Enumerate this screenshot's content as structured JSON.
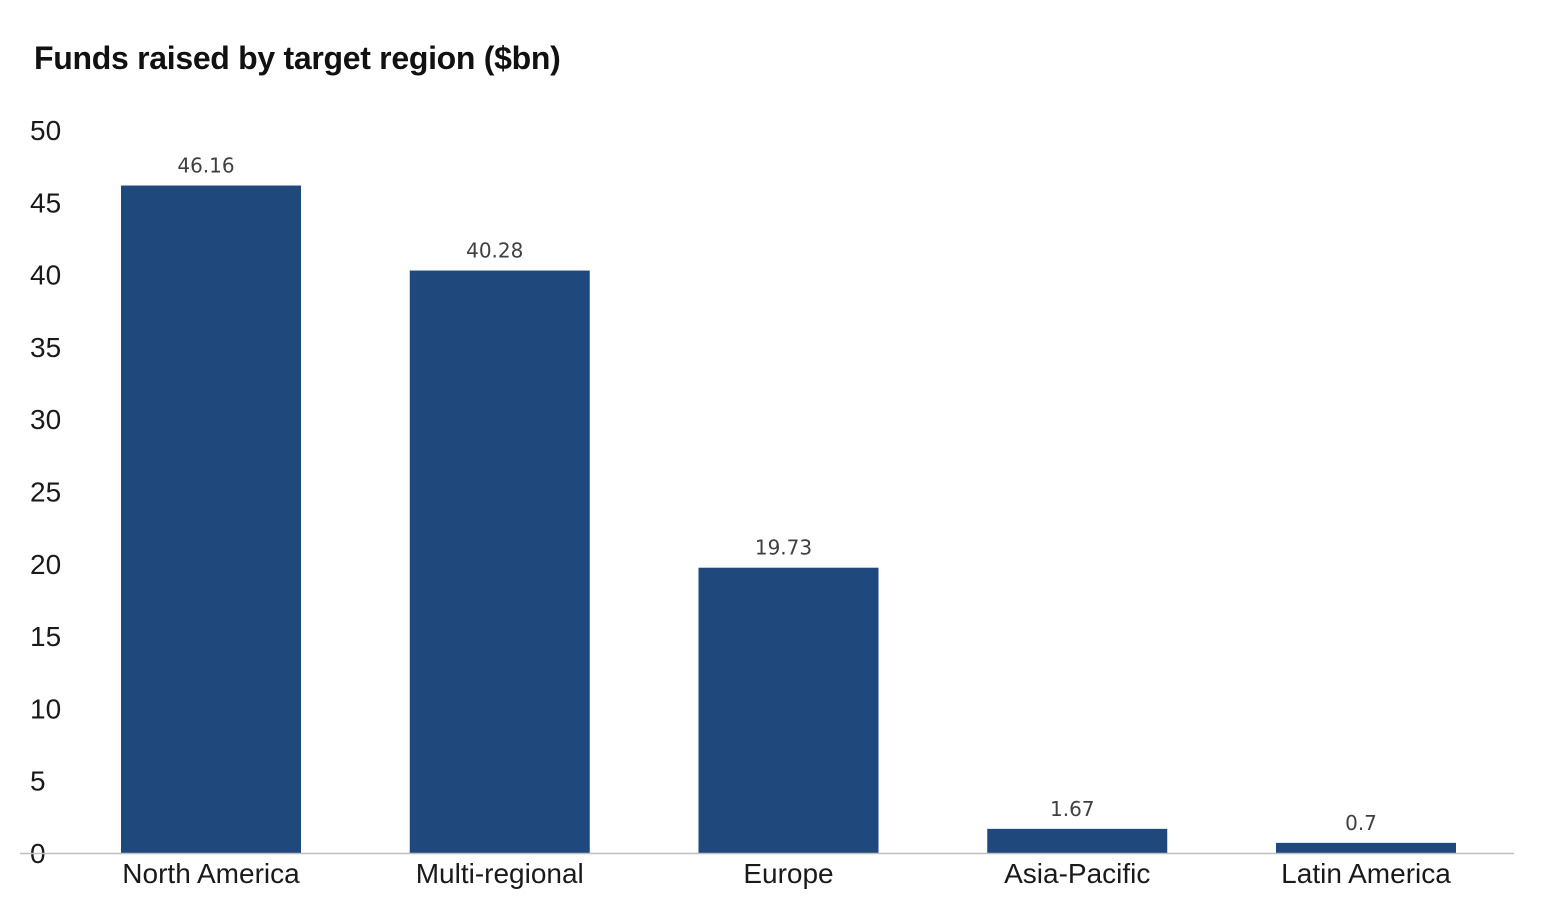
{
  "chart_data": {
    "type": "bar",
    "title": "Funds raised by target region ($bn)",
    "xlabel": "",
    "ylabel": "",
    "categories": [
      "North America",
      "Multi-regional",
      "Europe",
      "Asia-Pacific",
      "Latin America"
    ],
    "values": [
      46.16,
      40.28,
      19.73,
      1.67,
      0.7
    ],
    "data_labels": [
      "46.16",
      "40.28",
      "19.73",
      "1.67",
      "0.7"
    ],
    "ylim": [
      0,
      50
    ],
    "yticks": [
      0,
      5,
      10,
      15,
      20,
      25,
      30,
      35,
      40,
      45,
      50
    ],
    "grid": false,
    "legend": "none",
    "bar_color": "#1F497D",
    "axis_color": "#BFBFBF"
  }
}
